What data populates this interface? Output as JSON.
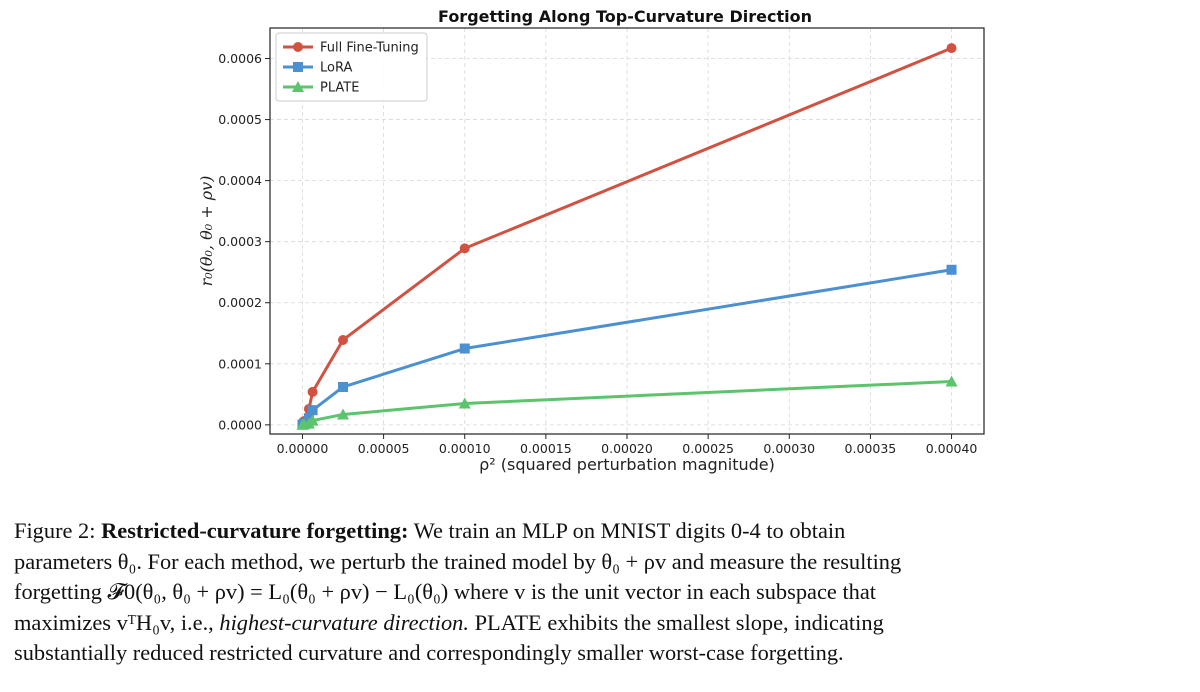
{
  "chart_data": {
    "type": "line",
    "title": "Forgetting Along Top-Curvature Direction",
    "xlabel": "ρ² (squared perturbation magnitude)",
    "ylabel": "r₀(θ₀, θ₀ + ρv)",
    "x": [
      0.0,
      1e-06,
      4e-06,
      6.25e-06,
      2.5e-05,
      0.0001,
      0.0004
    ],
    "series": [
      {
        "name": "Full Fine-Tuning",
        "color": "#d15241",
        "marker": "circle",
        "values": [
          8e-07,
          6e-06,
          2.6e-05,
          5.4e-05,
          0.000139,
          0.000289,
          0.000617
        ]
      },
      {
        "name": "LoRA",
        "color": "#4b90d0",
        "marker": "square",
        "values": [
          4e-07,
          2.5e-06,
          1.1e-05,
          2.4e-05,
          6.2e-05,
          0.000125,
          0.000254
        ]
      },
      {
        "name": "PLATE",
        "color": "#5cc46d",
        "marker": "triangle",
        "values": [
          1e-07,
          7e-07,
          2e-06,
          7e-06,
          1.7e-05,
          3.5e-05,
          7.1e-05
        ]
      }
    ],
    "xlim": [
      -2e-05,
      0.00042
    ],
    "ylim": [
      -1.5e-05,
      0.00065
    ],
    "xticks": [
      "0.00000",
      "0.00005",
      "0.00010",
      "0.00015",
      "0.00020",
      "0.00025",
      "0.00030",
      "0.00035",
      "0.00040"
    ],
    "xtick_values": [
      0,
      5e-05,
      0.0001,
      0.00015,
      0.0002,
      0.00025,
      0.0003,
      0.00035,
      0.0004
    ],
    "yticks": [
      "0.0000",
      "0.0001",
      "0.0002",
      "0.0003",
      "0.0004",
      "0.0005",
      "0.0006"
    ],
    "ytick_values": [
      0,
      0.0001,
      0.0002,
      0.0003,
      0.0004,
      0.0005,
      0.0006
    ],
    "grid": true,
    "legend": "top-left"
  },
  "caption": {
    "label": "Figure 2:",
    "bold_title": "Restricted-curvature forgetting:",
    "line1_rest": "We train an MLP on MNIST digits 0-4 to obtain",
    "line2": "parameters θ₀. For each method, we perturb the trained model by θ₀ + ρv and measure the resulting",
    "line3": "forgetting 𝓕0(θ₀, θ₀ + ρv) = L₀(θ₀ + ρv) − L₀(θ₀) where v is the unit vector in each subspace that",
    "line4_pre": "maximizes vᵀH₀v, i.e.,",
    "line4_italic": "highest-curvature direction.",
    "line4_post": "PLATE exhibits the smallest slope, indicating",
    "line5": "substantially reduced restricted curvature and correspondingly smaller worst-case forgetting."
  }
}
